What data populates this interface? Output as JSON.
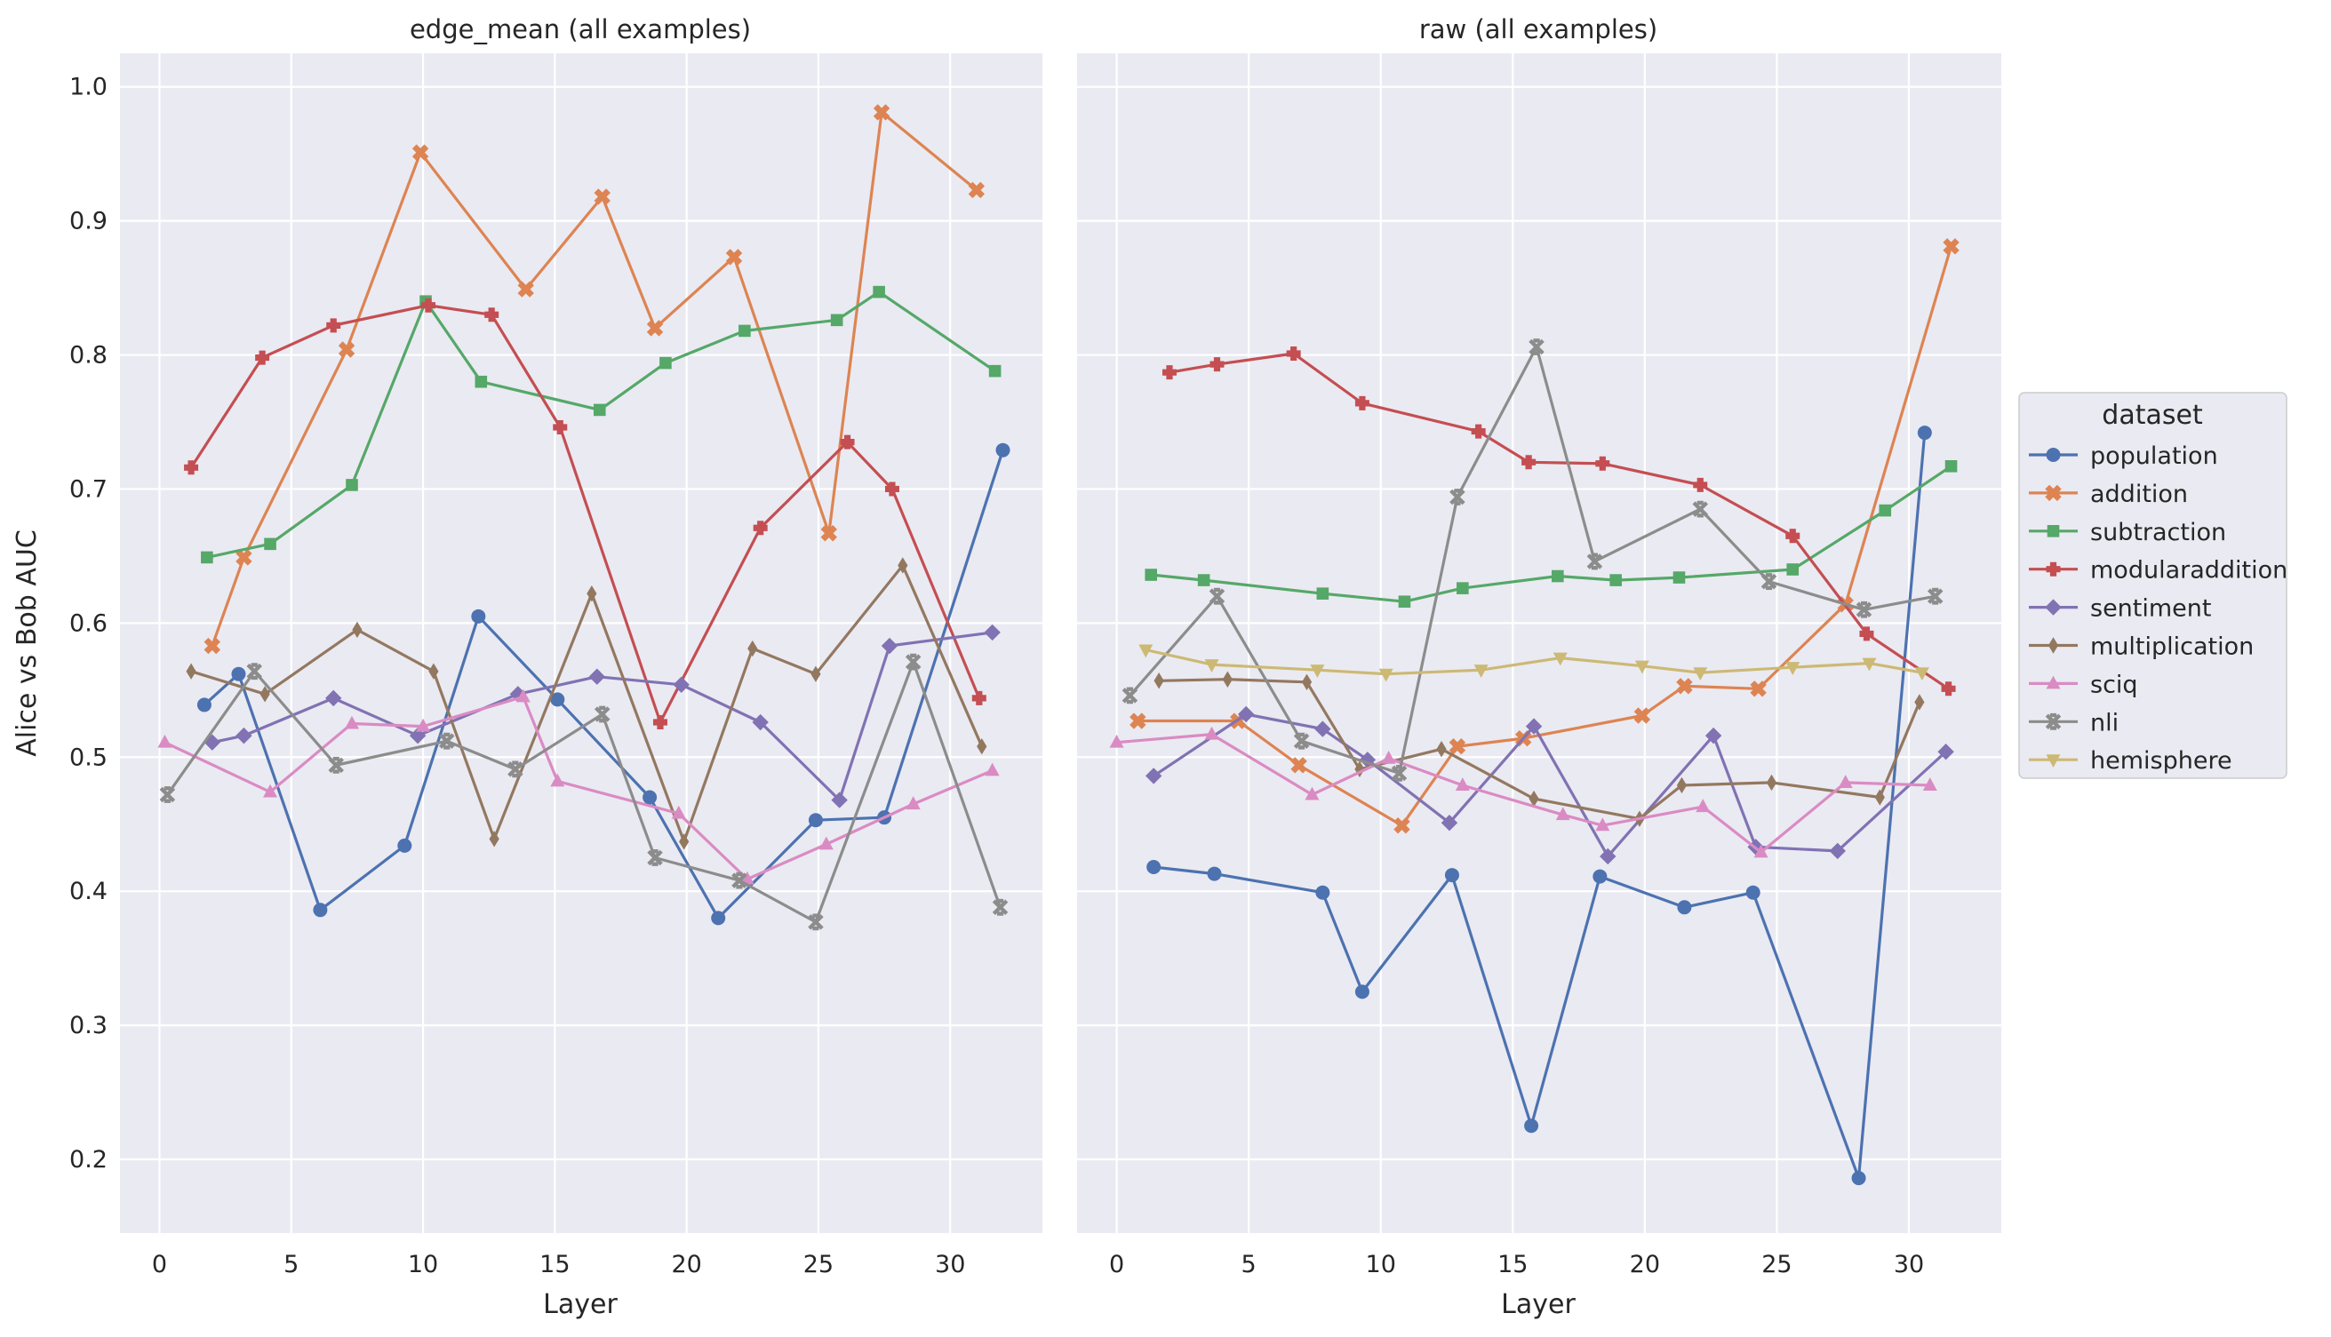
{
  "figure": {
    "ylabel": "Alice vs Bob AUC",
    "xlabel": "Layer",
    "legend_title": "dataset",
    "legend_placement": "right"
  },
  "style": {
    "background": "#eaeaf2",
    "grid": "#ffffff",
    "text": "#262626"
  },
  "chart_data": [
    {
      "type": "line",
      "title": "edge_mean (all examples)",
      "xlabel": "Layer",
      "ylabel": "Alice vs Bob AUC",
      "xlim": [
        -1.5,
        33.5
      ],
      "ylim": [
        0.145,
        1.025
      ],
      "xticks": [
        0,
        5,
        10,
        15,
        20,
        25,
        30
      ],
      "yticks": [
        0.2,
        0.3,
        0.4,
        0.5,
        0.6,
        0.7,
        0.8,
        0.9,
        1.0
      ],
      "grid": true,
      "series": [
        {
          "name": "population",
          "color": "#4c72b0",
          "marker": "circle",
          "x": [
            1.7,
            3.0,
            6.1,
            9.3,
            12.1,
            15.1,
            18.6,
            21.2,
            24.9,
            27.5,
            32.0
          ],
          "y": [
            0.539,
            0.562,
            0.386,
            0.434,
            0.605,
            0.543,
            0.47,
            0.38,
            0.453,
            0.455,
            0.729
          ]
        },
        {
          "name": "addition",
          "color": "#dd8452",
          "marker": "x",
          "x": [
            2.0,
            3.2,
            7.1,
            9.9,
            13.9,
            16.8,
            18.8,
            21.8,
            25.4,
            27.4,
            31.0
          ],
          "y": [
            0.583,
            0.649,
            0.804,
            0.951,
            0.849,
            0.918,
            0.82,
            0.873,
            0.667,
            0.981,
            0.923
          ]
        },
        {
          "name": "subtraction",
          "color": "#55a868",
          "marker": "square",
          "x": [
            1.8,
            4.2,
            7.3,
            10.1,
            12.2,
            16.7,
            19.2,
            22.2,
            25.7,
            27.3,
            31.7
          ],
          "y": [
            0.649,
            0.659,
            0.703,
            0.84,
            0.78,
            0.759,
            0.794,
            0.818,
            0.826,
            0.847,
            0.788
          ]
        },
        {
          "name": "modularaddition",
          "color": "#c44e52",
          "marker": "plus",
          "x": [
            1.2,
            3.9,
            6.6,
            10.2,
            12.6,
            15.2,
            19.0,
            22.8,
            26.1,
            27.8,
            31.1
          ],
          "y": [
            0.716,
            0.798,
            0.822,
            0.837,
            0.83,
            0.746,
            0.526,
            0.671,
            0.735,
            0.7,
            0.544
          ]
        },
        {
          "name": "sentiment",
          "color": "#8172b3",
          "marker": "diamond",
          "x": [
            2.0,
            3.2,
            6.6,
            9.8,
            13.6,
            16.6,
            19.8,
            22.8,
            25.8,
            27.7,
            31.6
          ],
          "y": [
            0.511,
            0.516,
            0.544,
            0.516,
            0.547,
            0.56,
            0.554,
            0.526,
            0.468,
            0.583,
            0.593
          ]
        },
        {
          "name": "multiplication",
          "color": "#937860",
          "marker": "thin_diamond",
          "x": [
            1.2,
            4.0,
            7.5,
            10.4,
            12.7,
            16.4,
            19.9,
            22.5,
            24.9,
            28.2,
            31.2
          ],
          "y": [
            0.564,
            0.547,
            0.595,
            0.564,
            0.439,
            0.622,
            0.437,
            0.581,
            0.562,
            0.643,
            0.508
          ]
        },
        {
          "name": "sciq",
          "color": "#da8bc3",
          "marker": "triangle-up",
          "x": [
            0.2,
            4.2,
            7.3,
            10.0,
            13.8,
            15.1,
            19.7,
            22.3,
            25.3,
            28.6,
            31.6
          ],
          "y": [
            0.511,
            0.474,
            0.525,
            0.523,
            0.545,
            0.482,
            0.458,
            0.409,
            0.435,
            0.465,
            0.49
          ]
        },
        {
          "name": "nli",
          "color": "#8c8c8c",
          "marker": "tri",
          "x": [
            0.3,
            3.6,
            6.7,
            10.9,
            13.5,
            16.8,
            18.8,
            22.0,
            24.9,
            28.6,
            31.9
          ],
          "y": [
            0.472,
            0.564,
            0.494,
            0.512,
            0.491,
            0.532,
            0.425,
            0.408,
            0.377,
            0.571,
            0.388
          ]
        }
      ]
    },
    {
      "type": "line",
      "title": "raw (all examples)",
      "xlabel": "Layer",
      "ylabel": "",
      "xlim": [
        -1.5,
        33.5
      ],
      "ylim": [
        0.145,
        1.025
      ],
      "xticks": [
        0,
        5,
        10,
        15,
        20,
        25,
        30
      ],
      "yticks": [
        0.2,
        0.3,
        0.4,
        0.5,
        0.6,
        0.7,
        0.8,
        0.9,
        1.0
      ],
      "grid": true,
      "series": [
        {
          "name": "population",
          "color": "#4c72b0",
          "marker": "circle",
          "x": [
            1.4,
            3.7,
            7.8,
            9.3,
            12.7,
            15.7,
            18.3,
            21.5,
            24.1,
            28.1,
            30.6
          ],
          "y": [
            0.418,
            0.413,
            0.399,
            0.325,
            0.412,
            0.225,
            0.411,
            0.388,
            0.399,
            0.186,
            0.742
          ]
        },
        {
          "name": "addition",
          "color": "#dd8452",
          "marker": "x",
          "x": [
            0.8,
            4.6,
            6.9,
            10.8,
            12.9,
            15.4,
            19.9,
            21.5,
            24.3,
            27.6,
            31.6
          ],
          "y": [
            0.527,
            0.527,
            0.494,
            0.449,
            0.508,
            0.514,
            0.531,
            0.553,
            0.551,
            0.614,
            0.881
          ]
        },
        {
          "name": "subtraction",
          "color": "#55a868",
          "marker": "square",
          "x": [
            1.3,
            3.3,
            7.8,
            10.9,
            13.1,
            16.7,
            18.9,
            21.3,
            25.6,
            29.1,
            31.6
          ],
          "y": [
            0.636,
            0.632,
            0.622,
            0.616,
            0.626,
            0.635,
            0.632,
            0.634,
            0.64,
            0.684,
            0.717
          ]
        },
        {
          "name": "modularaddition",
          "color": "#c44e52",
          "marker": "plus",
          "x": [
            2.0,
            3.8,
            6.7,
            9.3,
            13.7,
            15.6,
            18.4,
            22.1,
            25.6,
            28.4,
            31.5
          ],
          "y": [
            0.787,
            0.793,
            0.801,
            0.764,
            0.743,
            0.72,
            0.719,
            0.703,
            0.665,
            0.592,
            0.551
          ]
        },
        {
          "name": "sentiment",
          "color": "#8172b3",
          "marker": "diamond",
          "x": [
            1.4,
            4.9,
            7.8,
            9.5,
            12.6,
            15.8,
            18.6,
            22.6,
            24.2,
            27.3,
            31.4
          ],
          "y": [
            0.486,
            0.532,
            0.521,
            0.498,
            0.451,
            0.523,
            0.426,
            0.516,
            0.433,
            0.43,
            0.504
          ]
        },
        {
          "name": "multiplication",
          "color": "#937860",
          "marker": "thin_diamond",
          "x": [
            1.6,
            4.2,
            7.2,
            9.2,
            12.3,
            15.8,
            19.8,
            21.4,
            24.8,
            28.9,
            30.4
          ],
          "y": [
            0.557,
            0.558,
            0.556,
            0.491,
            0.506,
            0.469,
            0.454,
            0.479,
            0.481,
            0.47,
            0.541
          ]
        },
        {
          "name": "sciq",
          "color": "#da8bc3",
          "marker": "triangle-up",
          "x": [
            0.0,
            3.6,
            7.4,
            10.3,
            13.1,
            16.9,
            18.4,
            22.2,
            24.4,
            27.6,
            30.8
          ],
          "y": [
            0.511,
            0.517,
            0.472,
            0.499,
            0.479,
            0.457,
            0.449,
            0.463,
            0.429,
            0.481,
            0.479
          ]
        },
        {
          "name": "nli",
          "color": "#8c8c8c",
          "marker": "tri",
          "x": [
            0.5,
            3.8,
            7.0,
            10.7,
            12.9,
            15.9,
            18.1,
            22.1,
            24.7,
            28.3,
            31.0
          ],
          "y": [
            0.546,
            0.62,
            0.512,
            0.488,
            0.694,
            0.806,
            0.646,
            0.685,
            0.631,
            0.61,
            0.62
          ]
        },
        {
          "name": "hemisphere",
          "color": "#ccb974",
          "marker": "triangle-down",
          "x": [
            1.1,
            3.6,
            7.6,
            10.2,
            13.8,
            16.8,
            19.9,
            22.1,
            25.6,
            28.5,
            30.5
          ],
          "y": [
            0.58,
            0.569,
            0.565,
            0.562,
            0.565,
            0.574,
            0.568,
            0.563,
            0.567,
            0.57,
            0.563
          ]
        }
      ]
    }
  ]
}
